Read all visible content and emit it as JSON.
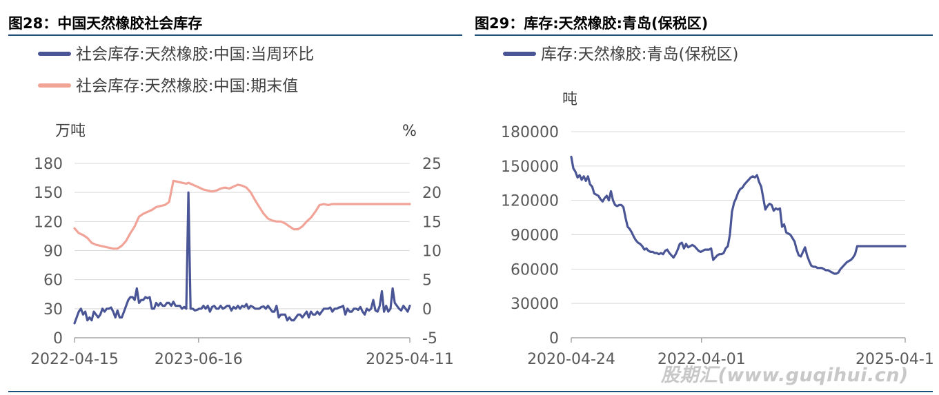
{
  "figures": [
    {
      "title": "图28：中国天然橡胶社会库存"
    },
    {
      "title": "图29：库存:天然橡胶:青岛(保税区)"
    }
  ],
  "chart_data": [
    {
      "type": "line",
      "title": "图28：中国天然橡胶社会库存",
      "left_unit": "万吨",
      "right_unit": "%",
      "x_ticks": [
        "2022-04-15",
        "2023-06-16",
        "2025-04-11"
      ],
      "y_left": {
        "ticks": [
          0,
          30,
          60,
          90,
          120,
          150,
          180
        ],
        "range": [
          0,
          180
        ]
      },
      "y_right": {
        "ticks": [
          -5,
          0,
          5,
          10,
          15,
          20,
          25
        ],
        "range": [
          -5,
          25
        ]
      },
      "series": [
        {
          "name": "社会库存:天然橡胶:中国:当周环比",
          "axis": "right",
          "color": "#4a5596",
          "x": [
            0,
            1,
            2,
            3,
            4,
            5,
            6,
            7,
            8,
            9,
            10,
            11,
            12,
            13,
            14,
            15,
            16,
            17,
            18,
            19,
            20,
            21,
            22,
            23,
            24,
            25,
            26,
            27,
            28,
            29,
            30,
            31,
            32,
            33,
            34,
            35,
            36,
            37,
            38,
            39,
            40,
            41,
            42,
            43,
            44,
            45,
            46,
            47,
            48,
            49,
            50,
            51,
            52,
            53,
            54,
            55,
            56,
            57,
            58,
            59,
            60,
            61,
            62,
            63,
            64,
            65,
            66,
            67,
            68,
            69,
            70,
            71,
            72,
            73,
            74,
            75,
            76,
            77,
            78,
            79,
            80,
            81,
            82,
            83,
            84,
            85,
            86,
            87,
            88,
            89,
            90,
            91,
            92,
            93,
            94,
            95,
            96,
            97,
            98,
            99,
            100,
            101,
            102,
            103,
            104,
            105,
            106,
            107,
            108,
            109,
            110,
            111,
            112,
            113,
            114,
            115,
            116,
            117,
            118,
            119,
            120,
            121,
            122,
            123,
            124,
            125,
            126,
            127,
            128,
            129,
            130,
            131,
            132,
            133,
            134,
            135,
            136,
            137,
            138,
            139,
            140,
            141,
            142,
            143,
            144,
            145,
            146,
            147,
            148,
            149,
            150,
            151,
            152,
            153,
            154,
            155,
            156
          ],
          "values": [
            -2.5,
            -1.5,
            -0.5,
            0,
            -1,
            -0.5,
            -2,
            -1.5,
            -2,
            -0.5,
            -1,
            -1.5,
            -1,
            0,
            -0.5,
            0,
            0,
            0.2,
            -0.5,
            -1.5,
            -0.3,
            -1.5,
            -1.5,
            -0.5,
            0.5,
            1.5,
            2,
            2,
            1.5,
            3.5,
            1,
            1.5,
            1.5,
            2,
            1.8,
            2,
            0,
            0,
            1,
            0.5,
            1,
            0.5,
            0.5,
            1,
            1,
            0.5,
            1.2,
            0.5,
            0.5,
            0.5,
            0,
            0.3,
            0,
            20,
            0,
            0,
            -0.3,
            -0.2,
            0,
            0,
            0.5,
            0,
            0.5,
            -0.5,
            0.3,
            0.5,
            0,
            0,
            0.5,
            0,
            0.2,
            0.5,
            0.5,
            -0.3,
            0.3,
            0,
            0.5,
            0,
            0.5,
            0.3,
            0.8,
            0,
            0.5,
            0.3,
            0,
            0,
            0,
            0.3,
            0.4,
            0,
            0.5,
            0,
            -0.5,
            -0.5,
            0.5,
            -1.5,
            -1,
            -1,
            -1,
            -2,
            -1.5,
            -2,
            -2,
            -1.5,
            -1,
            -1,
            -1.5,
            -1,
            -0.5,
            -1.5,
            -0.5,
            -1,
            -1,
            -0.5,
            -1,
            -0.5,
            0,
            0,
            0,
            0.2,
            -0.5,
            0,
            0,
            0.2,
            0.3,
            0.5,
            -1,
            0,
            -0.5,
            -0.5,
            0,
            0,
            -0.2,
            0.3,
            -0.5,
            -1,
            0,
            -0.3,
            0,
            1.5,
            -0.3,
            -0.5,
            0.5,
            3,
            -0.5,
            0.5,
            -0.5,
            0,
            3.5,
            1,
            0.5,
            0,
            -0.3,
            0.5,
            0,
            -0.5,
            0.5
          ]
        },
        {
          "name": "社会库存:天然橡胶:中国:期末值",
          "axis": "left",
          "color": "#f2a398",
          "x": [
            0,
            2,
            4,
            6,
            8,
            10,
            12,
            14,
            16,
            18,
            20,
            22,
            24,
            26,
            28,
            30,
            32,
            34,
            36,
            38,
            40,
            42,
            44,
            46,
            48,
            50,
            52,
            53,
            54,
            56,
            58,
            60,
            62,
            64,
            66,
            68,
            70,
            72,
            74,
            76,
            78,
            80,
            82,
            84,
            86,
            88,
            90,
            92,
            94,
            96,
            98,
            100,
            102,
            104,
            106,
            108,
            110,
            112,
            114,
            116,
            118,
            120,
            122,
            124,
            126,
            128,
            130,
            132,
            134,
            136,
            138,
            140,
            142,
            144,
            146,
            148,
            150,
            152,
            154,
            156
          ],
          "values": [
            113,
            108,
            106,
            103,
            98,
            96,
            95,
            94,
            93,
            92,
            92,
            95,
            100,
            108,
            115,
            125,
            128,
            130,
            132,
            135,
            136,
            137,
            140,
            162,
            161,
            160,
            159,
            160,
            159,
            157,
            155,
            153,
            152,
            151,
            152,
            154,
            155,
            154,
            156,
            158,
            157,
            155,
            150,
            142,
            135,
            128,
            123,
            121,
            120,
            120,
            118,
            115,
            112,
            112,
            115,
            120,
            124,
            130,
            137,
            138,
            137,
            138,
            138,
            138,
            138,
            138,
            138,
            138,
            138,
            138,
            138,
            138,
            138,
            138,
            138,
            138,
            138,
            138,
            138,
            138
          ]
        }
      ]
    },
    {
      "type": "line",
      "title": "图29：库存:天然橡胶:青岛(保税区)",
      "left_unit": "吨",
      "x_ticks": [
        "2020-04-24",
        "2022-04-01",
        "2025-04-1"
      ],
      "y_left": {
        "ticks": [
          0,
          30000,
          60000,
          90000,
          120000,
          150000,
          180000
        ],
        "range": [
          0,
          180000
        ]
      },
      "series": [
        {
          "name": "库存:天然橡胶:青岛(保税区)",
          "axis": "left",
          "color": "#4a5596",
          "x": [
            0,
            1,
            2,
            3,
            4,
            5,
            6,
            7,
            8,
            9,
            10,
            11,
            12,
            13,
            14,
            15,
            16,
            17,
            18,
            19,
            20,
            21,
            22,
            23,
            24,
            25,
            26,
            27,
            28,
            29,
            30,
            31,
            32,
            33,
            34,
            35,
            36,
            37,
            38,
            39,
            40,
            41,
            42,
            43,
            44,
            45,
            46,
            47,
            48,
            49,
            50,
            51,
            52,
            53,
            54,
            55,
            56,
            57,
            58,
            59,
            60,
            61,
            62,
            63,
            64,
            65,
            66,
            67,
            68,
            69,
            70,
            71,
            72,
            73,
            74,
            75,
            76,
            77,
            78,
            79,
            80,
            81,
            82,
            83,
            84,
            85,
            86,
            87,
            88,
            89,
            90,
            91,
            92,
            93,
            94,
            95,
            96,
            97,
            98,
            99,
            100,
            101,
            102,
            103,
            104,
            105,
            106,
            107,
            108,
            109,
            110,
            111,
            112,
            113,
            114,
            115,
            116,
            117,
            118,
            119,
            120,
            121,
            122,
            123,
            124,
            125,
            126,
            127,
            128,
            129,
            130,
            131,
            132,
            133,
            134,
            135,
            136,
            137,
            138,
            139,
            140,
            141,
            142,
            143,
            144,
            145,
            146,
            147,
            148,
            149,
            150,
            151,
            152,
            153,
            154,
            155,
            156,
            157,
            158,
            159,
            160
          ],
          "values": [
            158000,
            148000,
            145000,
            140000,
            142000,
            138000,
            141000,
            137000,
            141000,
            134000,
            132000,
            126000,
            125000,
            124000,
            121000,
            119000,
            122000,
            124000,
            120000,
            128000,
            120000,
            116000,
            115000,
            116000,
            116000,
            114000,
            105000,
            97000,
            95000,
            92000,
            88000,
            85000,
            83000,
            82000,
            80000,
            77000,
            78000,
            76000,
            75000,
            75000,
            74000,
            74000,
            73000,
            74000,
            73000,
            76000,
            77000,
            74000,
            72000,
            70000,
            73000,
            77000,
            82000,
            83000,
            78000,
            82000,
            79000,
            80000,
            81000,
            80000,
            78000,
            76000,
            75000,
            76000,
            77000,
            77000,
            77000,
            78000,
            68000,
            70000,
            72000,
            73000,
            73000,
            74000,
            78000,
            80000,
            90000,
            110000,
            118000,
            122000,
            127000,
            130000,
            131000,
            134000,
            136000,
            138000,
            140000,
            141000,
            140000,
            142000,
            136000,
            132000,
            122000,
            112000,
            115000,
            117000,
            116000,
            111000,
            113000,
            112000,
            113000,
            97000,
            99000,
            92000,
            91000,
            90000,
            87000,
            84000,
            77000,
            72000,
            71000,
            75000,
            79000,
            72000,
            67000,
            63000,
            62000,
            62000,
            61000,
            61000,
            61000,
            60000,
            59000,
            59000,
            58000,
            57000,
            56000,
            56000,
            57000,
            60000,
            62000,
            64000,
            66000,
            67000,
            68000,
            70000,
            73000,
            80000,
            80000,
            80000,
            80000,
            80000,
            80000,
            80000,
            80000,
            80000,
            80000,
            80000,
            80000,
            80000,
            80000,
            80000,
            80000,
            80000,
            80000,
            80000,
            80000,
            80000,
            80000,
            80000,
            80000
          ]
        }
      ]
    }
  ],
  "watermark": "股期汇(www.guqihui.cn)"
}
